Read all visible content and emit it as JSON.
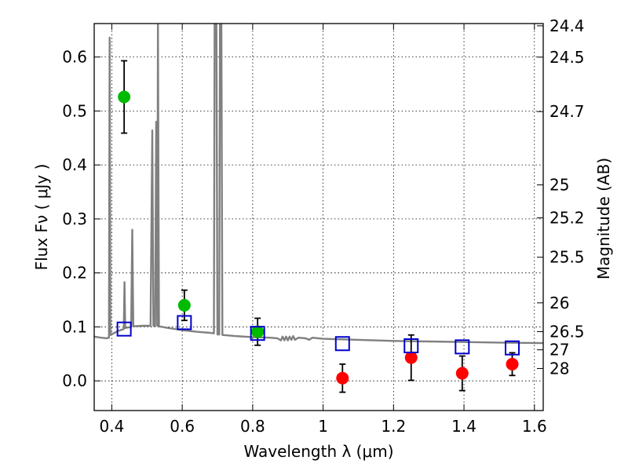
{
  "chart_data": {
    "type": "scatter",
    "xlabel": "Wavelength  λ (μm)",
    "ylabel": "Flux  Fν  ( μJy )",
    "ylabel_right": "Magnitude (AB)",
    "xlim": [
      0.35,
      1.625
    ],
    "ylim": [
      -0.055,
      0.662
    ],
    "grid": true,
    "x_ticks": [
      {
        "value": 0.4,
        "label": "0.4"
      },
      {
        "value": 0.6,
        "label": "0.6"
      },
      {
        "value": 0.8,
        "label": "0.8"
      },
      {
        "value": 1.0,
        "label": "1"
      },
      {
        "value": 1.2,
        "label": "1.2"
      },
      {
        "value": 1.4,
        "label": "1.4"
      },
      {
        "value": 1.6,
        "label": "1.6"
      }
    ],
    "y_ticks": [
      {
        "value": 0.0,
        "label": "0.0"
      },
      {
        "value": 0.1,
        "label": "0.1"
      },
      {
        "value": 0.2,
        "label": "0.2"
      },
      {
        "value": 0.3,
        "label": "0.3"
      },
      {
        "value": 0.4,
        "label": "0.4"
      },
      {
        "value": 0.5,
        "label": "0.5"
      },
      {
        "value": 0.6,
        "label": "0.6"
      }
    ],
    "right_ticks": [
      {
        "flux": 0.6578,
        "label": "24.4"
      },
      {
        "flux": 0.5998,
        "label": "24.5"
      },
      {
        "flux": 0.4989,
        "label": "24.7"
      },
      {
        "flux": 0.3631,
        "label": "25"
      },
      {
        "flux": 0.302,
        "label": "25.2"
      },
      {
        "flux": 0.2291,
        "label": "25.5"
      },
      {
        "flux": 0.1445,
        "label": "26"
      },
      {
        "flux": 0.0912,
        "label": "26.5"
      },
      {
        "flux": 0.0575,
        "label": "27"
      },
      {
        "flux": 0.0229,
        "label": "28"
      }
    ],
    "series": [
      {
        "marker": "circle",
        "color": "#00bb00",
        "points": [
          {
            "x": 0.435,
            "y": 0.526,
            "err": 0.067
          },
          {
            "x": 0.606,
            "y": 0.14,
            "err": 0.028
          },
          {
            "x": 0.814,
            "y": 0.091,
            "err": 0.025
          }
        ]
      },
      {
        "marker": "circle",
        "color": "#ff0000",
        "points": [
          {
            "x": 1.055,
            "y": 0.005,
            "err": 0.026
          },
          {
            "x": 1.25,
            "y": 0.043,
            "err": 0.042
          },
          {
            "x": 1.395,
            "y": 0.014,
            "err": 0.032
          },
          {
            "x": 1.537,
            "y": 0.031,
            "err": 0.021
          }
        ]
      },
      {
        "marker": "open-square",
        "color": "#0000cc",
        "points": [
          {
            "x": 0.435,
            "y": 0.096
          },
          {
            "x": 0.606,
            "y": 0.108
          },
          {
            "x": 0.814,
            "y": 0.088
          },
          {
            "x": 1.055,
            "y": 0.069
          },
          {
            "x": 1.25,
            "y": 0.065
          },
          {
            "x": 1.395,
            "y": 0.063
          },
          {
            "x": 1.537,
            "y": 0.061
          }
        ]
      }
    ],
    "spectrum": {
      "color": "#808080",
      "points": [
        [
          0.35,
          0.082
        ],
        [
          0.37,
          0.08
        ],
        [
          0.385,
          0.079
        ],
        [
          0.392,
          0.08
        ],
        [
          0.394,
          0.636
        ],
        [
          0.396,
          0.085
        ],
        [
          0.42,
          0.093
        ],
        [
          0.434,
          0.096
        ],
        [
          0.436,
          0.183
        ],
        [
          0.438,
          0.098
        ],
        [
          0.455,
          0.1
        ],
        [
          0.458,
          0.28
        ],
        [
          0.461,
          0.101
        ],
        [
          0.49,
          0.102
        ],
        [
          0.51,
          0.102
        ],
        [
          0.515,
          0.464
        ],
        [
          0.518,
          0.102
        ],
        [
          0.523,
          0.102
        ],
        [
          0.526,
          0.48
        ],
        [
          0.529,
          0.102
        ],
        [
          0.531,
          0.66
        ],
        [
          0.534,
          0.101
        ],
        [
          0.56,
          0.098
        ],
        [
          0.6,
          0.094
        ],
        [
          0.64,
          0.091
        ],
        [
          0.68,
          0.089
        ],
        [
          0.69,
          0.088
        ],
        [
          0.692,
          0.66
        ],
        [
          0.697,
          0.66
        ],
        [
          0.7,
          0.086
        ],
        [
          0.705,
          0.086
        ],
        [
          0.707,
          0.66
        ],
        [
          0.711,
          0.66
        ],
        [
          0.714,
          0.085
        ],
        [
          0.75,
          0.083
        ],
        [
          0.8,
          0.081
        ],
        [
          0.85,
          0.08
        ],
        [
          0.87,
          0.079
        ],
        [
          0.88,
          0.075
        ],
        [
          0.885,
          0.082
        ],
        [
          0.89,
          0.075
        ],
        [
          0.895,
          0.082
        ],
        [
          0.9,
          0.075
        ],
        [
          0.905,
          0.082
        ],
        [
          0.91,
          0.076
        ],
        [
          0.915,
          0.083
        ],
        [
          0.92,
          0.076
        ],
        [
          0.93,
          0.08
        ],
        [
          0.95,
          0.079
        ],
        [
          0.96,
          0.076
        ],
        [
          0.97,
          0.08
        ],
        [
          1.0,
          0.078
        ],
        [
          1.1,
          0.076
        ],
        [
          1.2,
          0.074
        ],
        [
          1.3,
          0.073
        ],
        [
          1.4,
          0.072
        ],
        [
          1.5,
          0.071
        ],
        [
          1.625,
          0.07
        ]
      ]
    }
  }
}
